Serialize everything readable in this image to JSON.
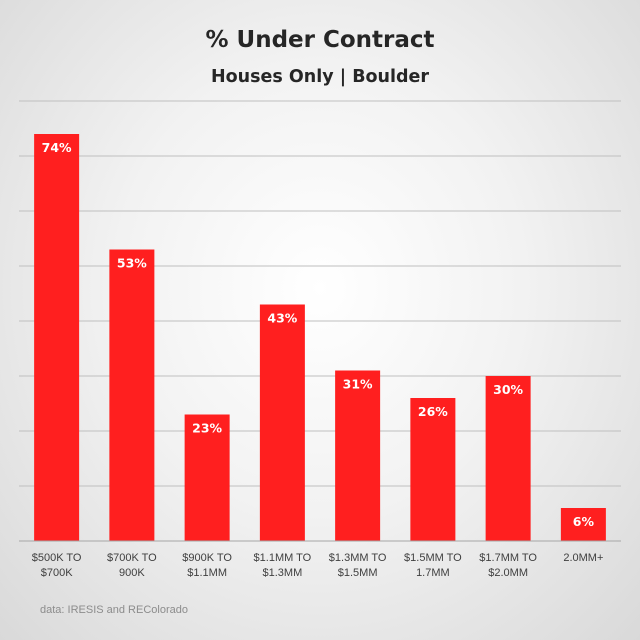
{
  "chart_data": {
    "type": "bar",
    "title": "% Under Contract",
    "subtitle": "Houses Only | Boulder",
    "categories": [
      [
        "$500K TO",
        "$700K"
      ],
      [
        "$700K TO",
        "900K"
      ],
      [
        "$900K TO",
        "$1.1MM"
      ],
      [
        "$1.1MM TO",
        "$1.3MM"
      ],
      [
        "$1.3MM TO",
        "$1.5MM"
      ],
      [
        "$1.5MM TO",
        "1.7MM"
      ],
      [
        "$1.7MM TO",
        "$2.0MM"
      ],
      [
        "2.0MM+"
      ]
    ],
    "values": [
      74,
      53,
      23,
      43,
      31,
      26,
      30,
      6
    ],
    "value_labels": [
      "74%",
      "53%",
      "23%",
      "43%",
      "31%",
      "26%",
      "30%",
      "6%"
    ],
    "ylim": [
      0,
      80
    ],
    "gridline_step": 10,
    "grid": true,
    "bar_color": "#ff1f1f",
    "xlabel": "",
    "ylabel": "",
    "source": "data: IRESIS and REColorado"
  }
}
